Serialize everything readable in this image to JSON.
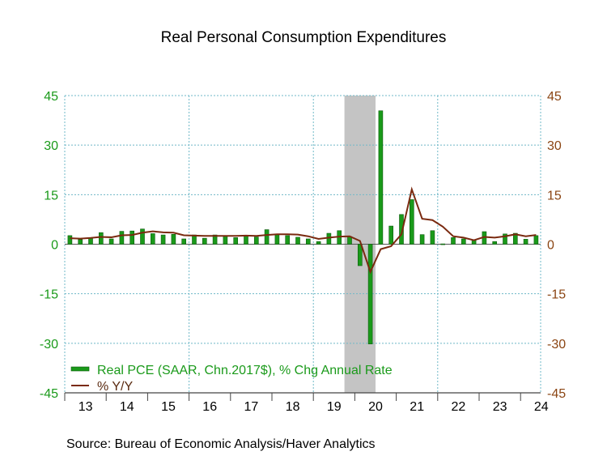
{
  "chart_data": {
    "type": "bar",
    "title": "Real Personal Consumption Expenditures",
    "source": "Source:  Bureau of Economic Analysis/Haver Analytics",
    "x_tick_labels": [
      "13",
      "14",
      "15",
      "16",
      "17",
      "18",
      "19",
      "20",
      "21",
      "22",
      "23",
      "24"
    ],
    "y_left_ticks": [
      45,
      30,
      15,
      0,
      -15,
      -30,
      -45
    ],
    "y_right_ticks": [
      45,
      30,
      15,
      0,
      -15,
      -30,
      -45
    ],
    "ylim": [
      -45,
      45
    ],
    "x_start": "2013Q1",
    "recession": {
      "start": "2019Q4",
      "end": "2020Q2"
    },
    "grid": true,
    "legend_position": "bottom-left",
    "series": [
      {
        "name": "Real PCE (SAAR, Chn.2017$), % Chg Annual Rate",
        "type": "bar",
        "color": "#1a9a1a",
        "values": [
          2.6,
          1.4,
          1.9,
          3.5,
          1.6,
          3.9,
          4.0,
          4.6,
          3.2,
          2.8,
          3.0,
          1.6,
          2.8,
          1.8,
          2.8,
          2.6,
          2.0,
          2.7,
          2.2,
          4.4,
          2.9,
          2.6,
          2.1,
          1.6,
          0.8,
          3.3,
          4.1,
          2.3,
          -6.5,
          -30.2,
          40.4,
          5.5,
          9.0,
          13.5,
          2.9,
          4.1,
          0.1,
          2.0,
          1.6,
          1.2,
          3.8,
          0.8,
          3.1,
          3.3,
          1.5,
          2.6
        ]
      },
      {
        "name": "% Y/Y",
        "type": "line",
        "color": "#7a2a10",
        "values": [
          1.8,
          1.7,
          1.9,
          2.2,
          2.1,
          2.7,
          2.8,
          3.5,
          3.9,
          3.6,
          3.5,
          2.7,
          2.6,
          2.5,
          2.5,
          2.5,
          2.5,
          2.6,
          2.5,
          2.8,
          3.0,
          3.0,
          2.9,
          2.4,
          1.6,
          2.0,
          2.3,
          2.4,
          1.0,
          -8.4,
          -1.5,
          -0.6,
          3.0,
          16.6,
          7.7,
          7.3,
          5.3,
          2.4,
          2.0,
          1.2,
          2.2,
          2.0,
          2.4,
          3.0,
          2.4,
          2.8
        ]
      }
    ]
  }
}
